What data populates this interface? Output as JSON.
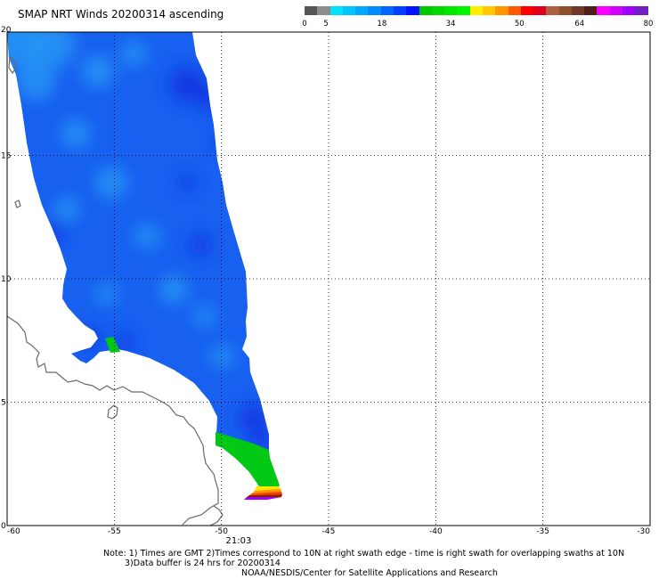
{
  "header": {
    "title": "SMAP NRT Winds 20200314 ascending"
  },
  "legend": {
    "labels": [
      {
        "v": 0,
        "t": "0"
      },
      {
        "v": 5,
        "t": "5"
      },
      {
        "v": 18,
        "t": "18"
      },
      {
        "v": 34,
        "t": "34"
      },
      {
        "v": 50,
        "t": "50"
      },
      {
        "v": 64,
        "t": "64"
      },
      {
        "v": 80,
        "t": "80"
      }
    ],
    "segments": [
      "#555555",
      "#8c8c8c",
      "#00e0ff",
      "#00c4ff",
      "#00a8ff",
      "#008cff",
      "#0066ff",
      "#0040ff",
      "#0015ff",
      "#00c800",
      "#00d800",
      "#00e800",
      "#00f500",
      "#fff000",
      "#ffc800",
      "#ff9600",
      "#ff5a00",
      "#ff0000",
      "#e0001e",
      "#b06040",
      "#905030",
      "#703828",
      "#502018",
      "#ff00ff",
      "#d000ff",
      "#a000ff",
      "#7020c0"
    ]
  },
  "map": {
    "lon_range": [
      -60,
      -30
    ],
    "lat_range": [
      0,
      20
    ],
    "x_ticks": [
      {
        "v": -60,
        "t": "-60"
      },
      {
        "v": -55,
        "t": "-55"
      },
      {
        "v": -50,
        "t": "-50"
      },
      {
        "v": -45,
        "t": "-45"
      },
      {
        "v": -40,
        "t": "-40"
      },
      {
        "v": -35,
        "t": "-35"
      },
      {
        "v": -30,
        "t": "-30"
      }
    ],
    "y_ticks": [
      {
        "v": 0,
        "t": "0"
      },
      {
        "v": 5,
        "t": "5"
      },
      {
        "v": 10,
        "t": "10"
      },
      {
        "v": 15,
        "t": "15"
      },
      {
        "v": 20,
        "t": "20"
      }
    ],
    "time_label": "21:03",
    "time_label_lon": -49.2,
    "colors": {
      "swath": "#1760f0",
      "light_wind": "#2a9cf5",
      "dark_wind": "#0b2ee0",
      "green_wind": "#00c814",
      "land_line": "#6a6a6a"
    }
  },
  "notes": {
    "line1": "Note: 1) Times are GMT 2)Times correspond to 10N at right swath edge - time is right swath for overlapping swaths at 10N",
    "line2": "3)Data buffer is 24 hrs for 20200314",
    "line3": "NOAA/NESDIS/Center for Satellite Applications and Research"
  }
}
